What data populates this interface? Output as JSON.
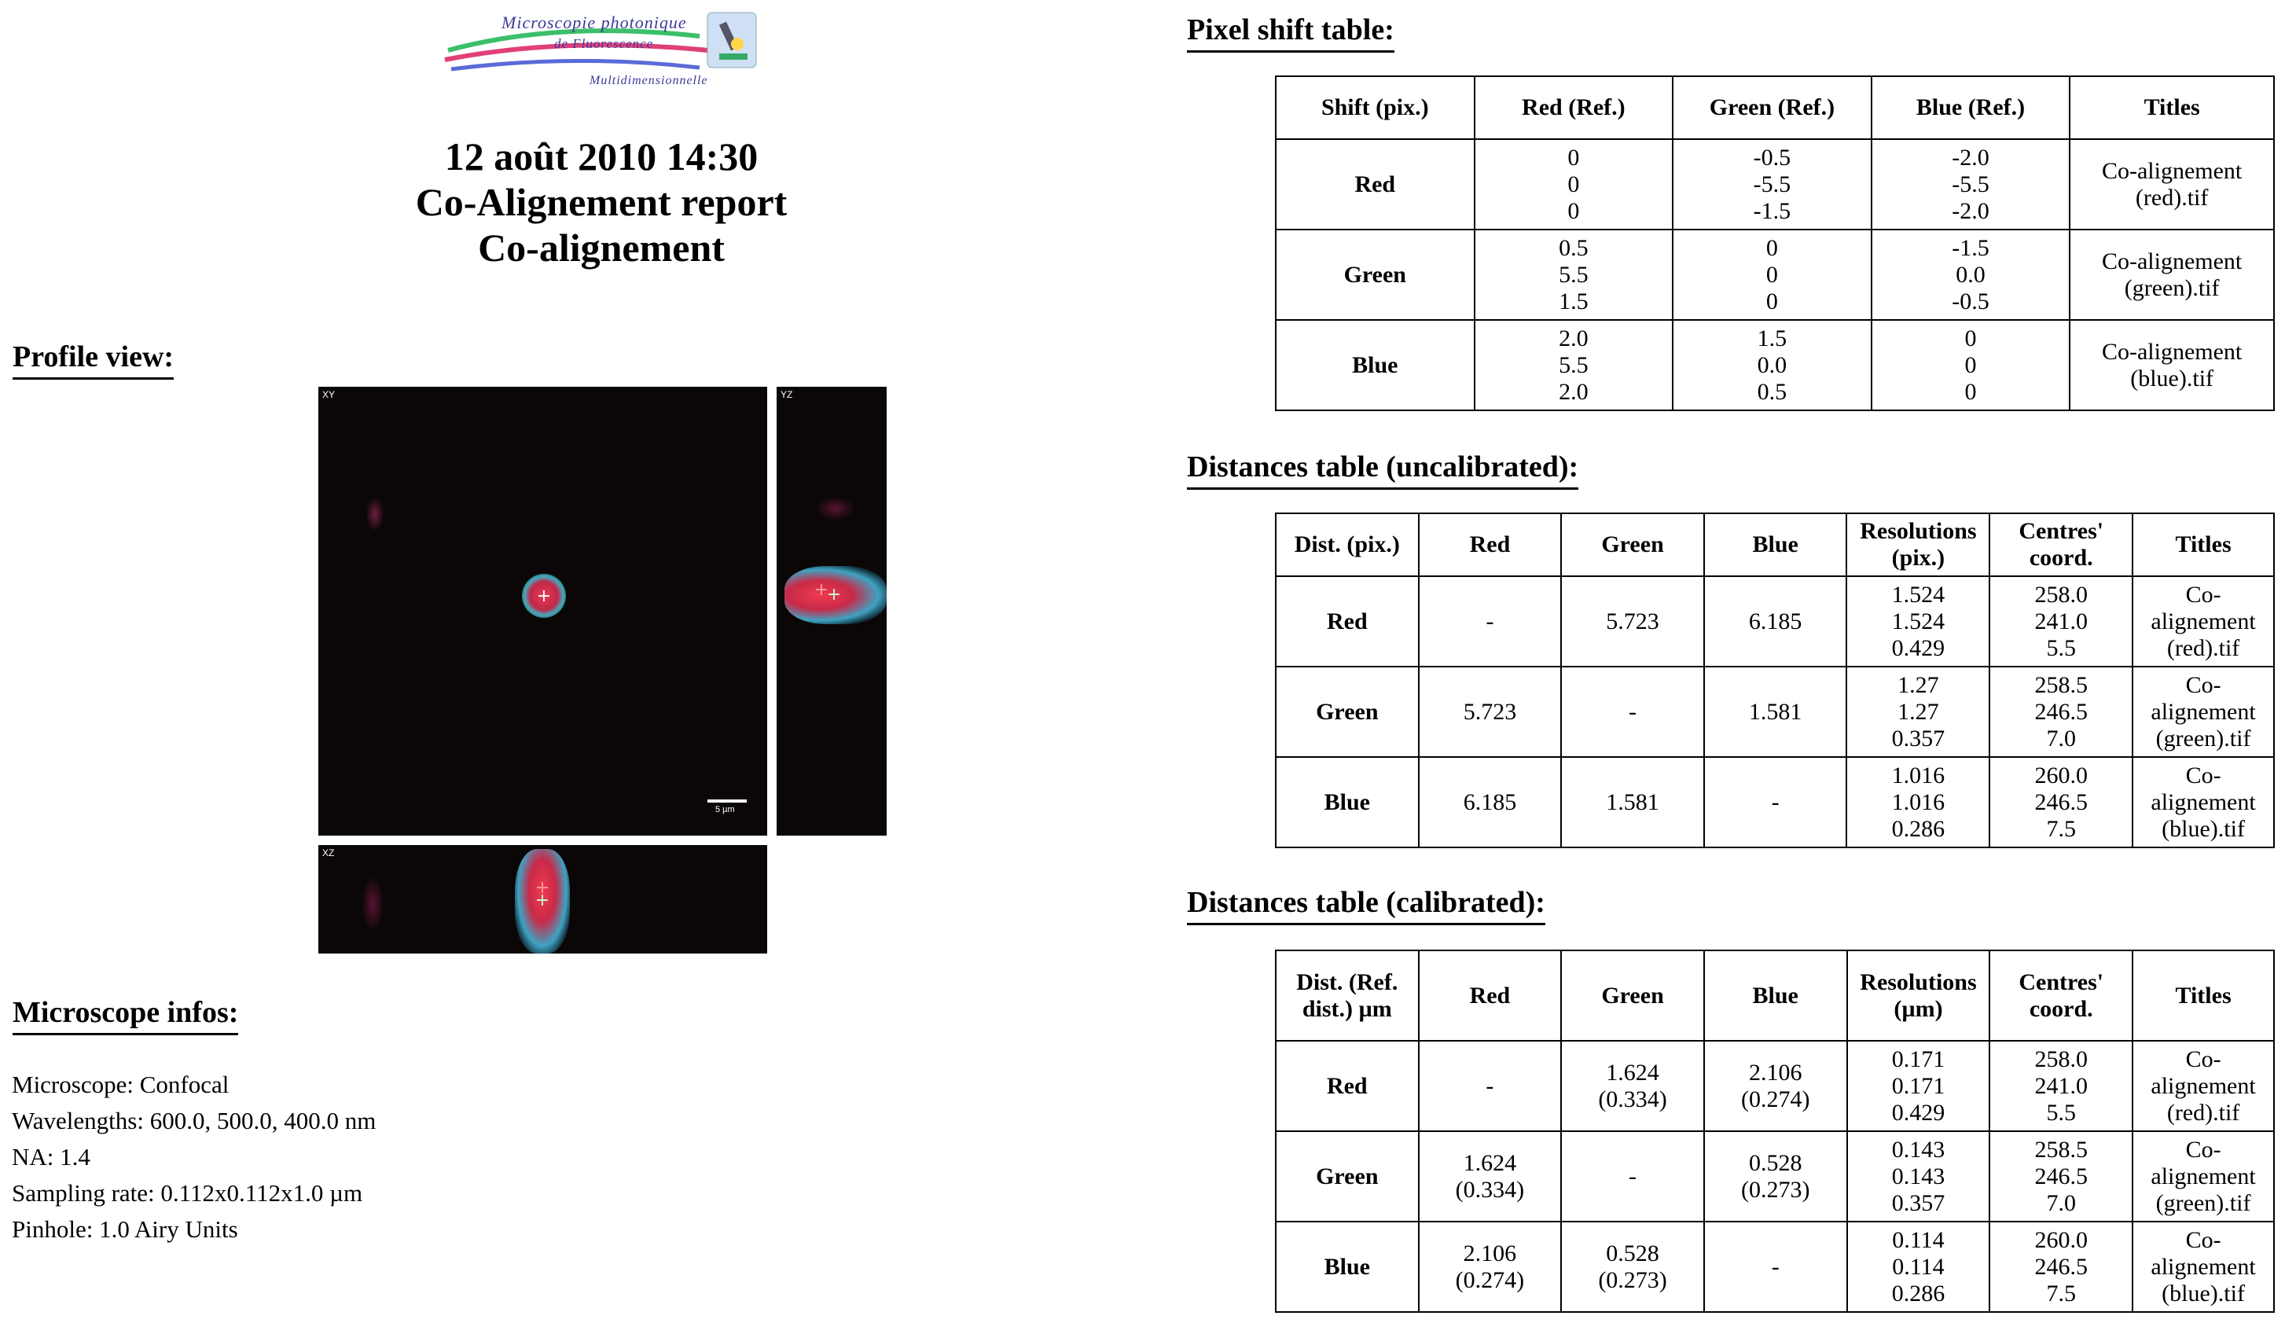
{
  "logo": {
    "line1": "Microscopie photonique",
    "line2": "de Fluorescence",
    "line3": "Multidimensionnelle"
  },
  "header": {
    "date": "12 août 2010 14:30",
    "report_title": "Co-Alignement report",
    "subtitle": "Co-alignement"
  },
  "profile": {
    "title": "Profile view:",
    "xy_label": "XY",
    "yz_label": "YZ",
    "xz_label": "XZ",
    "scale_bar_label": "5 µm"
  },
  "microscope": {
    "title": "Microscope infos:",
    "lines": [
      "Microscope: Confocal",
      "Wavelengths: 600.0, 500.0, 400.0 nm",
      "NA: 1.4",
      "Sampling rate: 0.112x0.112x1.0 µm",
      "Pinhole: 1.0 Airy Units"
    ]
  },
  "pixel_shift": {
    "title": "Pixel shift table:",
    "headers": [
      "Shift (pix.)",
      "Red (Ref.)",
      "Green (Ref.)",
      "Blue (Ref.)",
      "Titles"
    ],
    "rows": [
      {
        "name": "Red",
        "cells": [
          [
            "0",
            "0",
            "0"
          ],
          [
            "-0.5",
            "-5.5",
            "-1.5"
          ],
          [
            "-2.0",
            "-5.5",
            "-2.0"
          ],
          [
            "Co-alignement",
            "(red).tif"
          ]
        ]
      },
      {
        "name": "Green",
        "cells": [
          [
            "0.5",
            "5.5",
            "1.5"
          ],
          [
            "0",
            "0",
            "0"
          ],
          [
            "-1.5",
            "0.0",
            "-0.5"
          ],
          [
            "Co-alignement",
            "(green).tif"
          ]
        ]
      },
      {
        "name": "Blue",
        "cells": [
          [
            "2.0",
            "5.5",
            "2.0"
          ],
          [
            "1.5",
            "0.0",
            "0.5"
          ],
          [
            "0",
            "0",
            "0"
          ],
          [
            "Co-alignement",
            "(blue).tif"
          ]
        ]
      }
    ]
  },
  "dist_uncal": {
    "title": "Distances table (uncalibrated):",
    "headers": [
      "Dist. (pix.)",
      "Red",
      "Green",
      "Blue",
      "Resolutions (pix.)",
      "Centres' coord.",
      "Titles"
    ],
    "rows": [
      {
        "name": "Red",
        "cells": [
          [
            "-"
          ],
          [
            "5.723"
          ],
          [
            "6.185"
          ],
          [
            "1.524",
            "1.524",
            "0.429"
          ],
          [
            "258.0",
            "241.0",
            "5.5"
          ],
          [
            "Co-",
            "alignement",
            "(red).tif"
          ]
        ]
      },
      {
        "name": "Green",
        "cells": [
          [
            "5.723"
          ],
          [
            "-"
          ],
          [
            "1.581"
          ],
          [
            "1.27",
            "1.27",
            "0.357"
          ],
          [
            "258.5",
            "246.5",
            "7.0"
          ],
          [
            "Co-",
            "alignement",
            "(green).tif"
          ]
        ]
      },
      {
        "name": "Blue",
        "cells": [
          [
            "6.185"
          ],
          [
            "1.581"
          ],
          [
            "-"
          ],
          [
            "1.016",
            "1.016",
            "0.286"
          ],
          [
            "260.0",
            "246.5",
            "7.5"
          ],
          [
            "Co-",
            "alignement",
            "(blue).tif"
          ]
        ]
      }
    ]
  },
  "dist_cal": {
    "title": "Distances table (calibrated):",
    "headers": [
      "Dist. (Ref. dist.) µm",
      "Red",
      "Green",
      "Blue",
      "Resolutions (µm)",
      "Centres' coord.",
      "Titles"
    ],
    "rows": [
      {
        "name": "Red",
        "cells": [
          [
            "-"
          ],
          [
            "1.624",
            "(0.334)"
          ],
          [
            "2.106",
            "(0.274)"
          ],
          [
            "0.171",
            "0.171",
            "0.429"
          ],
          [
            "258.0",
            "241.0",
            "5.5"
          ],
          [
            "Co-",
            "alignement",
            "(red).tif"
          ]
        ]
      },
      {
        "name": "Green",
        "cells": [
          [
            "1.624",
            "(0.334)"
          ],
          [
            "-"
          ],
          [
            "0.528",
            "(0.273)"
          ],
          [
            "0.143",
            "0.143",
            "0.357"
          ],
          [
            "258.5",
            "246.5",
            "7.0"
          ],
          [
            "Co-",
            "alignement",
            "(green).tif"
          ]
        ]
      },
      {
        "name": "Blue",
        "cells": [
          [
            "2.106",
            "(0.274)"
          ],
          [
            "0.528",
            "(0.273)"
          ],
          [
            "-"
          ],
          [
            "0.114",
            "0.114",
            "0.286"
          ],
          [
            "260.0",
            "246.5",
            "7.5"
          ],
          [
            "Co-",
            "alignement",
            "(blue).tif"
          ]
        ]
      }
    ]
  }
}
